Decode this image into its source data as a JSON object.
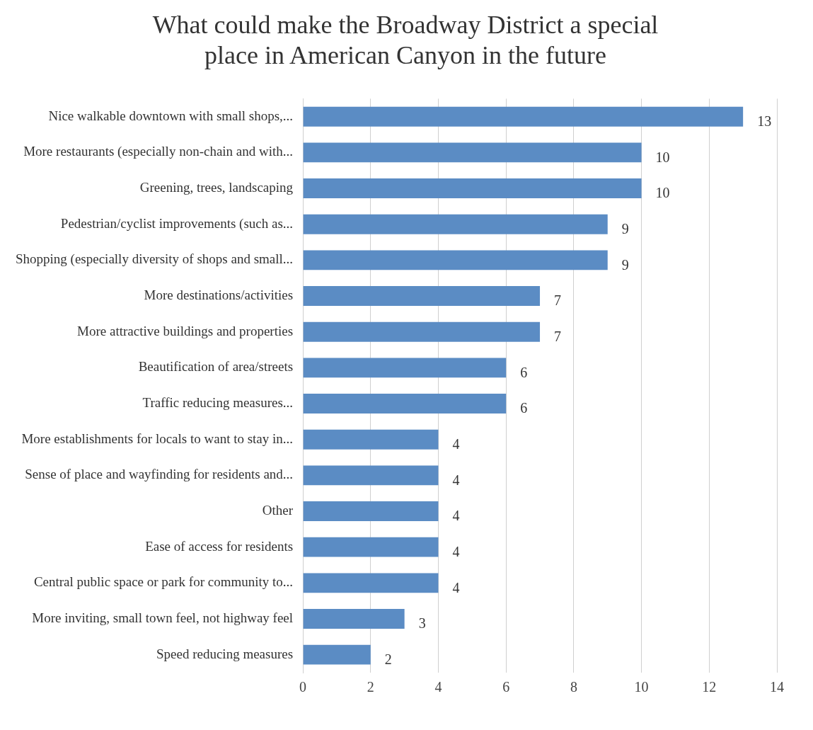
{
  "chart_data": {
    "type": "bar",
    "orientation": "horizontal",
    "title": "What could make the Broadway District a special place in American Canyon in the future",
    "categories": [
      "Nice walkable downtown with small shops,...",
      "More restaurants (especially non-chain and with...",
      "Greening, trees, landscaping",
      "Pedestrian/cyclist improvements (such as...",
      "Shopping (especially diversity of shops and small...",
      "More destinations/activities",
      "More attractive buildings and properties",
      "Beautification of area/streets",
      "Traffic reducing measures...",
      "More establishments for locals to want to stay in...",
      "Sense of place and wayfinding for residents and...",
      "Other",
      "Ease of access for residents",
      "Central public space or park for community to...",
      "More inviting, small town feel, not highway feel",
      "Speed reducing measures"
    ],
    "values": [
      13,
      10,
      10,
      9,
      9,
      7,
      7,
      6,
      6,
      4,
      4,
      4,
      4,
      4,
      3,
      2
    ],
    "color": "#5b8cc4",
    "xlim": [
      0,
      14
    ],
    "xticks": [
      0,
      2,
      4,
      6,
      8,
      10,
      12,
      14
    ],
    "grid": "x",
    "data_labels": true,
    "legend": false
  }
}
